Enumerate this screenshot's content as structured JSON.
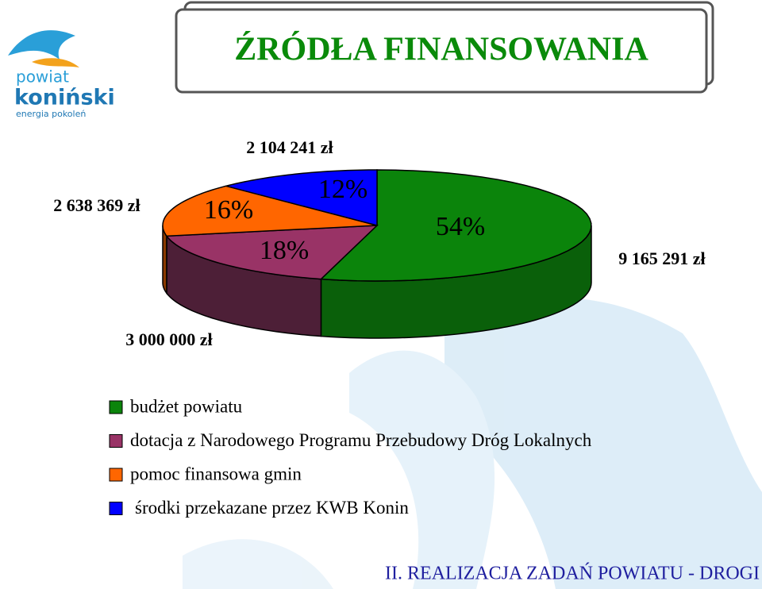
{
  "logo": {
    "line1": "powiat",
    "line2": "koniński",
    "line3": "energia pokoleń"
  },
  "footer": "II. REALIZACJA ZADAŃ POWIATU - DROGI",
  "chart_data": {
    "type": "pie",
    "title": "ŹRÓDŁA FINANSOWANIA",
    "categories": [
      "budżet powiatu",
      "dotacja z Narodowego Programu Przebudowy Dróg Lokalnych",
      "pomoc finansowa gmin",
      "środki przekazane przez KWB Konin"
    ],
    "values": [
      9165291,
      3000000,
      2638369,
      2104241
    ],
    "value_labels": [
      "9 165 291 zł",
      "3 000 000 zł",
      "2 638 369 zł",
      "2 104 241 zł"
    ],
    "percent_labels": [
      "54%",
      "18%",
      "16%",
      "12%"
    ],
    "colors": [
      "#0b840b",
      "#993366",
      "#ff6600",
      "#0000ff"
    ],
    "side_colors": [
      "#0a600a",
      "#4d1f37",
      "#8a3a00",
      "#00007a"
    ],
    "legend": "bottom-left"
  }
}
